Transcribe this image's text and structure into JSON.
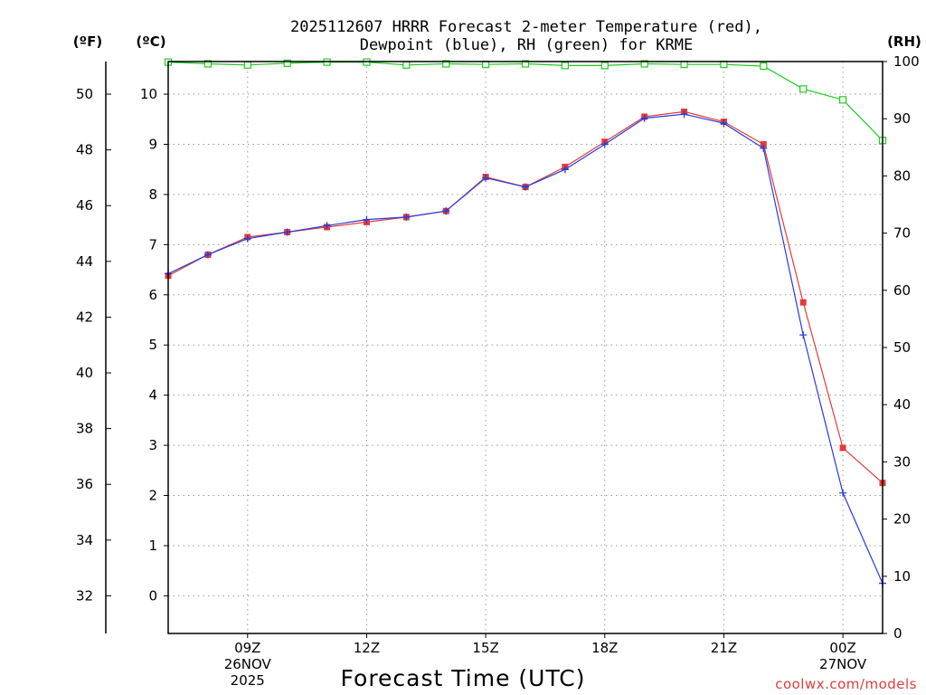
{
  "chart_data": {
    "type": "line",
    "title_line1": "2025112607 HRRR Forecast 2-meter Temperature (red),",
    "title_line2": "Dewpoint (blue), RH (green) for KRME",
    "units": {
      "fahrenheit": "(ºF)",
      "celsius": "(ºC)",
      "rh": "(RH)"
    },
    "xlabel": "Forecast Time (UTC)",
    "credit": "coolwx.com/models",
    "hours": [
      7,
      8,
      9,
      10,
      11,
      12,
      13,
      14,
      15,
      16,
      17,
      18,
      19,
      20,
      21,
      22,
      23,
      24,
      25
    ],
    "x_range": [
      7,
      25
    ],
    "x_ticks": [
      {
        "hour": 9,
        "lines": [
          "09Z",
          "26NOV",
          "2025"
        ]
      },
      {
        "hour": 12,
        "lines": [
          "12Z"
        ]
      },
      {
        "hour": 15,
        "lines": [
          "15Z"
        ]
      },
      {
        "hour": 18,
        "lines": [
          "18Z"
        ]
      },
      {
        "hour": 21,
        "lines": [
          "21Z"
        ]
      },
      {
        "hour": 24,
        "lines": [
          "00Z",
          "27NOV"
        ]
      }
    ],
    "celsius_axis": {
      "range": [
        -0.75,
        10.65
      ],
      "ticks": [
        0,
        1,
        2,
        3,
        4,
        5,
        6,
        7,
        8,
        9,
        10
      ]
    },
    "fahrenheit_axis": {
      "ticks": [
        32,
        34,
        36,
        38,
        40,
        42,
        44,
        46,
        48,
        50
      ]
    },
    "rh_axis": {
      "range": [
        0,
        100
      ],
      "ticks": [
        0,
        10,
        20,
        30,
        40,
        50,
        60,
        70,
        80,
        90,
        100
      ]
    },
    "series": [
      {
        "name": "Temperature",
        "unit": "C",
        "color": "#e23b3b",
        "marker": "square-filled",
        "values": [
          6.38,
          6.8,
          7.15,
          7.25,
          7.35,
          7.45,
          7.55,
          7.67,
          8.35,
          8.15,
          8.55,
          9.05,
          9.55,
          9.65,
          9.45,
          9.0,
          5.85,
          2.95,
          2.25
        ]
      },
      {
        "name": "Dewpoint",
        "unit": "C",
        "color": "#2a3bd9",
        "marker": "plus",
        "values": [
          6.42,
          6.8,
          7.12,
          7.25,
          7.38,
          7.5,
          7.55,
          7.67,
          8.33,
          8.15,
          8.5,
          9.0,
          9.52,
          9.6,
          9.42,
          8.92,
          5.2,
          2.05,
          0.25
        ]
      },
      {
        "name": "RH",
        "unit": "%",
        "color": "#1fcc1f",
        "marker": "square-open",
        "values": [
          99.9,
          99.6,
          99.4,
          99.7,
          99.9,
          99.9,
          99.4,
          99.6,
          99.5,
          99.6,
          99.3,
          99.3,
          99.6,
          99.5,
          99.5,
          99.2,
          95.2,
          93.3,
          86.2
        ]
      }
    ],
    "grid": true
  }
}
